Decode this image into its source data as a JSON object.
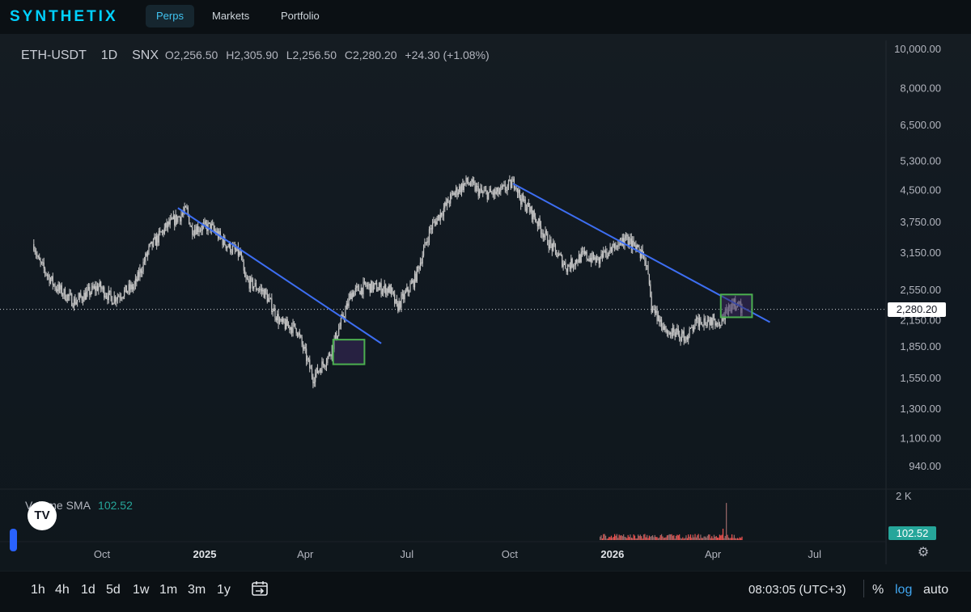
{
  "nav": {
    "logo": "SYNTHETIX",
    "tabs": [
      "Perps",
      "Markets",
      "Portfolio"
    ],
    "active_tab": "Perps"
  },
  "legend": {
    "symbol": "ETH-USDT",
    "interval": "1D",
    "source": "SNX",
    "open": "O2,256.50",
    "high": "H2,305.90",
    "low": "L2,256.50",
    "close": "C2,280.20",
    "change": "+24.30 (+1.08%)"
  },
  "volume_legend": {
    "label": "Volume SMA",
    "value": "102.52"
  },
  "price_axis": {
    "labels": [
      "10,000.00",
      "8,000.00",
      "6,500.00",
      "5,300.00",
      "4,500.00",
      "3,750.00",
      "3,150.00",
      "2,550.00",
      "2,150.00",
      "1,850.00",
      "1,550.00",
      "1,300.00",
      "1,100.00",
      "940.00"
    ],
    "current_price": "2,280.20",
    "volume_max_label": "2 K",
    "volume_value": "102.52",
    "scale": "log"
  },
  "time_axis": {
    "labels": [
      "Oct",
      "2025",
      "Apr",
      "Jul",
      "Oct",
      "2026",
      "Apr",
      "Jul"
    ],
    "bold": [
      "2025",
      "2026"
    ]
  },
  "colors": {
    "trendline": "#3d6ef2",
    "highlight_border": "#4caf50",
    "highlight_fill": "#3b2a5c",
    "candles": "#c8c8c8",
    "volume_bar": "#ef5350",
    "accent": "#41c3f0"
  },
  "chart_data": {
    "type": "candlestick",
    "symbol": "ETH-USDT",
    "interval": "1D",
    "scale": "log",
    "ylim": [
      850,
      10500
    ],
    "path_x": [
      "2024-08-01",
      "2024-08-05",
      "2024-08-20",
      "2024-09-06",
      "2024-09-28",
      "2024-10-10",
      "2024-10-30",
      "2024-11-12",
      "2024-11-28",
      "2024-12-06",
      "2024-12-16",
      "2024-12-20",
      "2025-01-06",
      "2025-01-20",
      "2025-02-02",
      "2025-02-06",
      "2025-02-24",
      "2025-03-10",
      "2025-03-24",
      "2025-04-08",
      "2025-04-22",
      "2025-05-08",
      "2025-05-12",
      "2025-05-26",
      "2025-06-16",
      "2025-06-22",
      "2025-07-08",
      "2025-07-22",
      "2025-08-12",
      "2025-08-24",
      "2025-09-06",
      "2025-09-20",
      "2025-10-06",
      "2025-10-10",
      "2025-10-22",
      "2025-11-06",
      "2025-11-21",
      "2025-12-06",
      "2025-12-20",
      "2026-01-06",
      "2026-01-14",
      "2026-01-31",
      "2026-02-05",
      "2026-02-20",
      "2026-03-08",
      "2026-03-20",
      "2026-04-08",
      "2026-04-20",
      "2026-04-27"
    ],
    "path_price": [
      3300,
      3000,
      2600,
      2380,
      2600,
      2420,
      2600,
      3200,
      3650,
      3800,
      4000,
      3600,
      3650,
      3300,
      3100,
      2700,
      2500,
      2100,
      2050,
      1550,
      1750,
      2300,
      2500,
      2600,
      2550,
      2300,
      2700,
      3600,
      4400,
      4700,
      4400,
      4400,
      4700,
      4300,
      3900,
      3300,
      2900,
      3100,
      3000,
      3300,
      3400,
      3000,
      2300,
      2000,
      1950,
      2150,
      2150,
      2350,
      2280
    ],
    "trendlines": [
      {
        "x": [
          "2024-12-08",
          "2025-06-08"
        ],
        "y": [
          4050,
          1880
        ]
      },
      {
        "x": [
          "2025-10-04",
          "2026-05-22"
        ],
        "y": [
          4650,
          2120
        ]
      }
    ],
    "highlight_boxes": [
      {
        "x": [
          "2025-04-26",
          "2025-05-24"
        ],
        "y": [
          1920,
          1670
        ]
      },
      {
        "x": [
          "2026-04-08",
          "2026-05-06"
        ],
        "y": [
          2480,
          2180
        ]
      }
    ],
    "last_close": 2280.2,
    "volume_sma": 102.52,
    "volume_ymax": 2000
  },
  "toolbar": {
    "timeframes": [
      "1h",
      "4h",
      "1d",
      "5d",
      "1w",
      "1m",
      "3m",
      "1y"
    ],
    "clock": "08:03:05 (UTC+3)",
    "percent_label": "%",
    "log_label": "log",
    "auto_label": "auto"
  }
}
